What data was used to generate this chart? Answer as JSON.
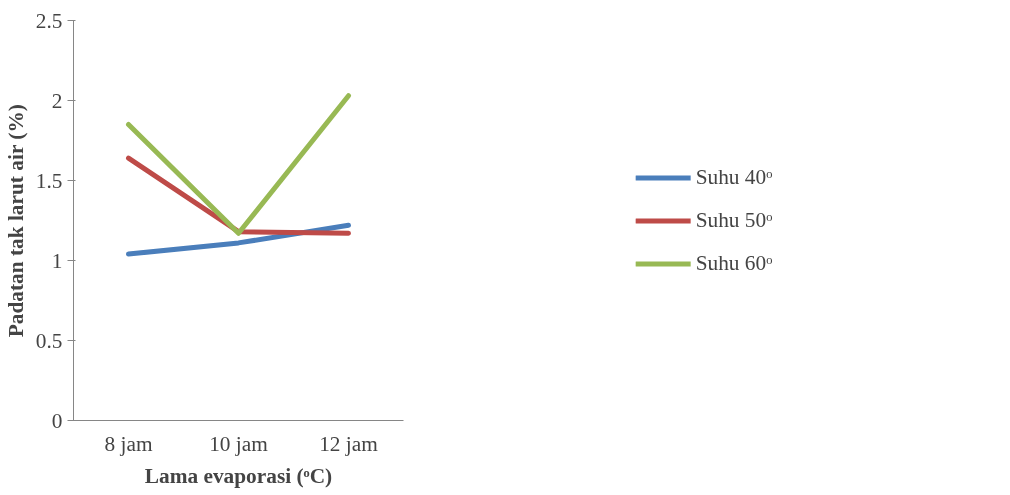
{
  "chart_data": {
    "type": "line",
    "xlabel": "Lama evaporasi (ᵒC)",
    "ylabel": "Padatan tak larut air (%)",
    "categories": [
      "8 jam",
      "10 jam",
      "12 jam"
    ],
    "ylim": [
      0,
      2.5
    ],
    "yticks": [
      0,
      0.5,
      1,
      1.5,
      2,
      2.5
    ],
    "grid": false,
    "legend": "right",
    "marker": "none",
    "line_style": "solid",
    "series": [
      {
        "name": "Suhu 40ᵒ",
        "color": "#4a7ebb",
        "values": [
          1.04,
          1.11,
          1.22
        ]
      },
      {
        "name": "Suhu 50ᵒ",
        "color": "#be4b48",
        "values": [
          1.64,
          1.18,
          1.17
        ]
      },
      {
        "name": "Suhu 60ᵒ",
        "color": "#98b954",
        "values": [
          1.85,
          1.17,
          2.03
        ]
      }
    ]
  }
}
